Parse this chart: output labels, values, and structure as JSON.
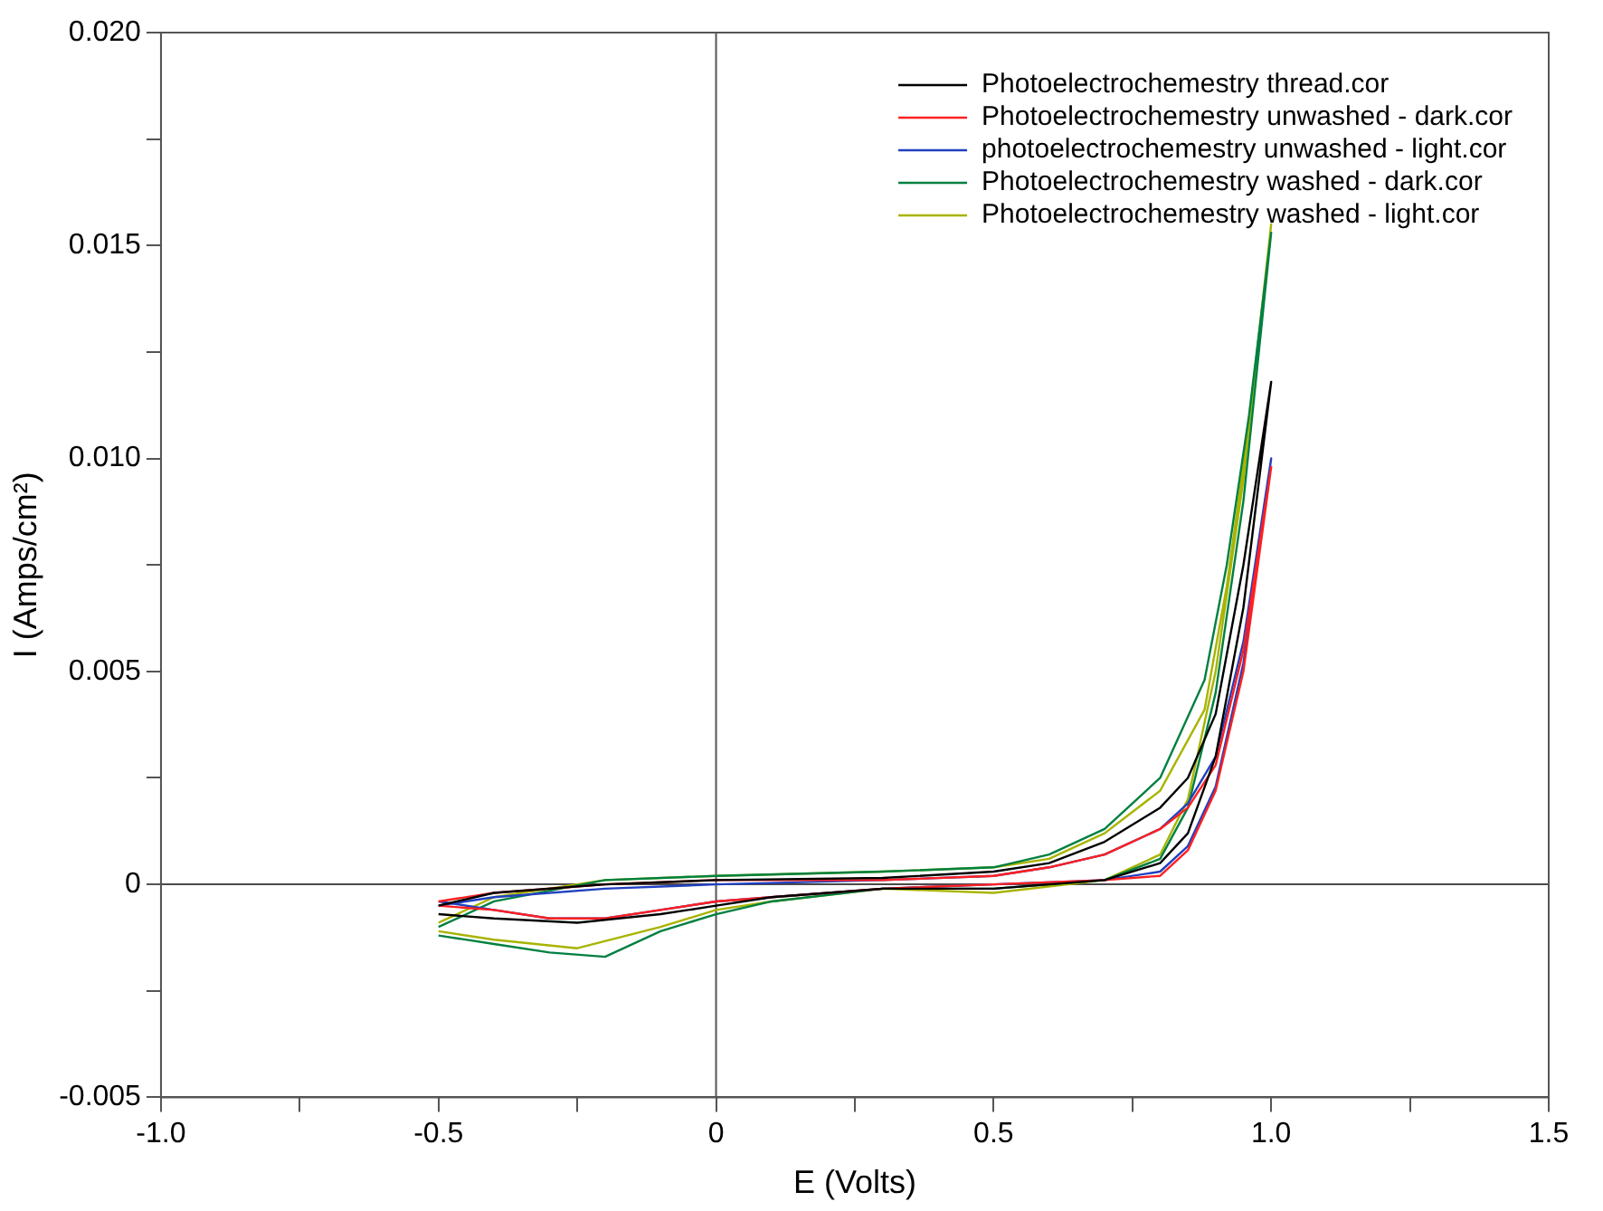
{
  "chart_data": {
    "type": "line",
    "xlabel": "E (Volts)",
    "ylabel": "I (Amps/cm²)",
    "xlim": [
      -1.0,
      1.5
    ],
    "ylim": [
      -0.005,
      0.02
    ],
    "xticks": [
      {
        "value": -1,
        "label": "-1.0"
      },
      {
        "value": -0.75,
        "label": null
      },
      {
        "value": -0.5,
        "label": "-0.5"
      },
      {
        "value": -0.25,
        "label": null
      },
      {
        "value": 0,
        "label": "0"
      },
      {
        "value": 0.25,
        "label": null
      },
      {
        "value": 0.5,
        "label": "0.5"
      },
      {
        "value": 0.75,
        "label": null
      },
      {
        "value": 1,
        "label": "1.0"
      },
      {
        "value": 1.25,
        "label": null
      },
      {
        "value": 1.5,
        "label": "1.5"
      }
    ],
    "yticks": [
      {
        "value": -0.005,
        "label": "-0.005"
      },
      {
        "value": -0.0025,
        "label": null
      },
      {
        "value": 0,
        "label": "0"
      },
      {
        "value": 0.0025,
        "label": null
      },
      {
        "value": 0.005,
        "label": "0.005"
      },
      {
        "value": 0.0075,
        "label": null
      },
      {
        "value": 0.01,
        "label": "0.010"
      },
      {
        "value": 0.0125,
        "label": null
      },
      {
        "value": 0.015,
        "label": "0.015"
      },
      {
        "value": 0.0175,
        "label": null
      },
      {
        "value": 0.02,
        "label": "0.020"
      }
    ],
    "grid": false,
    "legend": "top right",
    "marker": "none",
    "line_style": "solid",
    "ref_lines": [
      {
        "axis": "x",
        "value": 0,
        "color": "#555555"
      },
      {
        "axis": "y",
        "value": 0,
        "color": "#4a4a4a"
      }
    ],
    "series": [
      {
        "name": "Photoelectrochemestry thread.cor",
        "color": "#000000",
        "x": [
          -0.5,
          -0.4,
          -0.2,
          0,
          0.3,
          0.5,
          0.6,
          0.7,
          0.8,
          0.85,
          0.9,
          0.95,
          1.0,
          0.95,
          0.9,
          0.85,
          0.8,
          0.7,
          0.5,
          0.3,
          0.1,
          0,
          -0.1,
          -0.25,
          -0.4,
          -0.5
        ],
        "values": [
          -0.0005,
          -0.0002,
          0,
          0.0001,
          0.00015,
          0.0003,
          0.0005,
          0.001,
          0.0018,
          0.0025,
          0.004,
          0.0075,
          0.0118,
          0.0065,
          0.003,
          0.0012,
          0.0005,
          0.0001,
          -0.0001,
          -0.0001,
          -0.0003,
          -0.0005,
          -0.0007,
          -0.0009,
          -0.0008,
          -0.0007
        ]
      },
      {
        "name": "Photoelectrochemestry unwashed - dark.cor",
        "color": "#ff2020",
        "x": [
          -0.5,
          -0.4,
          -0.2,
          0,
          0.3,
          0.5,
          0.6,
          0.7,
          0.8,
          0.85,
          0.9,
          0.95,
          1.0,
          0.95,
          0.9,
          0.85,
          0.8,
          0.7,
          0.5,
          0.3,
          0.1,
          0,
          -0.1,
          -0.2,
          -0.3,
          -0.4,
          -0.5
        ],
        "values": [
          -0.0004,
          -0.0002,
          0,
          0.0001,
          0.0001,
          0.0002,
          0.0004,
          0.0007,
          0.0013,
          0.0018,
          0.0028,
          0.0055,
          0.0098,
          0.005,
          0.0022,
          0.0008,
          0.0002,
          0.0001,
          0,
          -0.0001,
          -0.0003,
          -0.0004,
          -0.0006,
          -0.0008,
          -0.0008,
          -0.0006,
          -0.0005
        ]
      },
      {
        "name": "photoelectrochemestry unwashed - light.cor",
        "color": "#2040c0",
        "x": [
          -0.5,
          -0.4,
          -0.2,
          0,
          0.3,
          0.5,
          0.6,
          0.7,
          0.8,
          0.85,
          0.9,
          0.95,
          1.0,
          0.95,
          0.9,
          0.85,
          0.8,
          0.7,
          0.5,
          0.3,
          0.1,
          0,
          -0.1,
          -0.2,
          -0.3,
          -0.4,
          -0.5
        ],
        "values": [
          -0.0005,
          -0.0003,
          -0.0001,
          0,
          0.0001,
          0.0002,
          0.0004,
          0.0007,
          0.0013,
          0.0019,
          0.003,
          0.0057,
          0.01,
          0.0052,
          0.0023,
          0.0009,
          0.0003,
          0.0001,
          0,
          -0.0001,
          -0.0003,
          -0.0004,
          -0.0006,
          -0.0008,
          -0.0008,
          -0.0006,
          -0.0004
        ]
      },
      {
        "name": "Photoelectrochemestry washed - dark.cor",
        "color": "#008040",
        "x": [
          -0.5,
          -0.4,
          -0.2,
          0,
          0.3,
          0.5,
          0.6,
          0.7,
          0.8,
          0.88,
          0.92,
          0.96,
          1.0,
          0.95,
          0.9,
          0.85,
          0.8,
          0.7,
          0.5,
          0.3,
          0.1,
          0,
          -0.1,
          -0.2,
          -0.3,
          -0.4,
          -0.5
        ],
        "values": [
          -0.001,
          -0.0004,
          0.0001,
          0.0002,
          0.0003,
          0.0004,
          0.0007,
          0.0013,
          0.0025,
          0.0048,
          0.0075,
          0.011,
          0.0153,
          0.009,
          0.0045,
          0.0018,
          0.0006,
          0.0001,
          -0.0001,
          -0.0001,
          -0.0004,
          -0.0007,
          -0.0011,
          -0.0017,
          -0.0016,
          -0.0014,
          -0.0012
        ]
      },
      {
        "name": "Photoelectrochemestry washed - light.cor",
        "color": "#a8b400",
        "x": [
          -0.5,
          -0.4,
          -0.2,
          0,
          0.3,
          0.5,
          0.6,
          0.7,
          0.8,
          0.88,
          0.92,
          0.96,
          1.0,
          0.95,
          0.9,
          0.85,
          0.8,
          0.7,
          0.5,
          0.3,
          0.1,
          0,
          -0.1,
          -0.25,
          -0.4,
          -0.5
        ],
        "values": [
          -0.0009,
          -0.0003,
          0.0001,
          0.0002,
          0.0003,
          0.0004,
          0.0006,
          0.0012,
          0.0022,
          0.0041,
          0.007,
          0.0108,
          0.0155,
          0.0095,
          0.005,
          0.002,
          0.0007,
          0.0001,
          -0.0002,
          -0.0001,
          -0.0004,
          -0.0006,
          -0.001,
          -0.0015,
          -0.0013,
          -0.0011
        ]
      }
    ]
  }
}
